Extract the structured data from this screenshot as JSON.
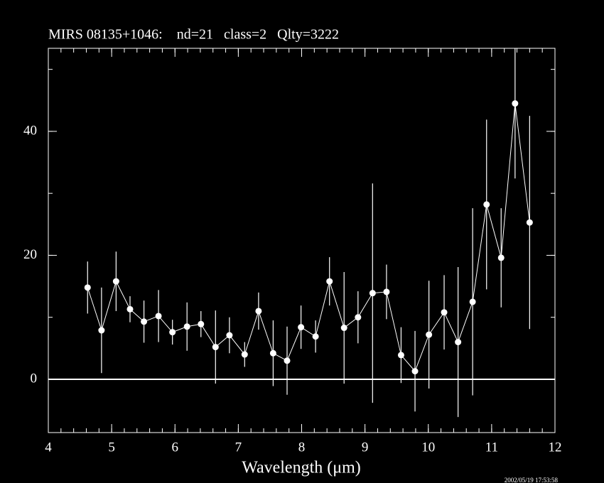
{
  "chart_data": {
    "type": "scatter",
    "title": "MIRS 08135+1046:    nd=21   class=2   Qlty=3222",
    "xlabel": "Wavelength (μm)",
    "timestamp": "2002/05/19 17:53:58",
    "x": [
      4.62,
      4.84,
      5.07,
      5.29,
      5.51,
      5.74,
      5.96,
      6.19,
      6.41,
      6.64,
      6.86,
      7.1,
      7.32,
      7.55,
      7.77,
      7.99,
      8.22,
      8.44,
      8.67,
      8.89,
      9.12,
      9.34,
      9.57,
      9.79,
      10.01,
      10.25,
      10.47,
      10.7,
      10.92,
      11.15,
      11.37,
      11.6
    ],
    "values": [
      14.8,
      7.9,
      15.8,
      11.3,
      9.3,
      10.2,
      7.6,
      8.5,
      8.9,
      5.2,
      7.1,
      4.0,
      11.0,
      4.2,
      3.0,
      8.4,
      6.9,
      15.8,
      8.3,
      10.0,
      13.9,
      14.1,
      3.9,
      1.3,
      7.2,
      10.8,
      6.0,
      12.5,
      28.2,
      19.6,
      44.5,
      25.3
    ],
    "errors": [
      4.2,
      6.9,
      4.8,
      2.1,
      3.4,
      4.2,
      2.0,
      3.9,
      2.1,
      5.9,
      2.9,
      2.0,
      3.0,
      5.3,
      5.5,
      3.5,
      2.6,
      3.9,
      9.0,
      4.2,
      17.7,
      4.4,
      4.5,
      6.5,
      8.7,
      6.0,
      12.1,
      15.1,
      13.7,
      8.0,
      12.1,
      17.2
    ],
    "color": "#ffffff",
    "connect": true,
    "hline": 0,
    "xlim": [
      4,
      12
    ],
    "xticks": [
      4,
      5,
      6,
      7,
      8,
      9,
      10,
      11,
      12
    ],
    "xminor": 0.2,
    "ylim": [
      -8.6,
      53.4
    ],
    "yticks": [
      0,
      20,
      40
    ],
    "yminor": 10
  }
}
